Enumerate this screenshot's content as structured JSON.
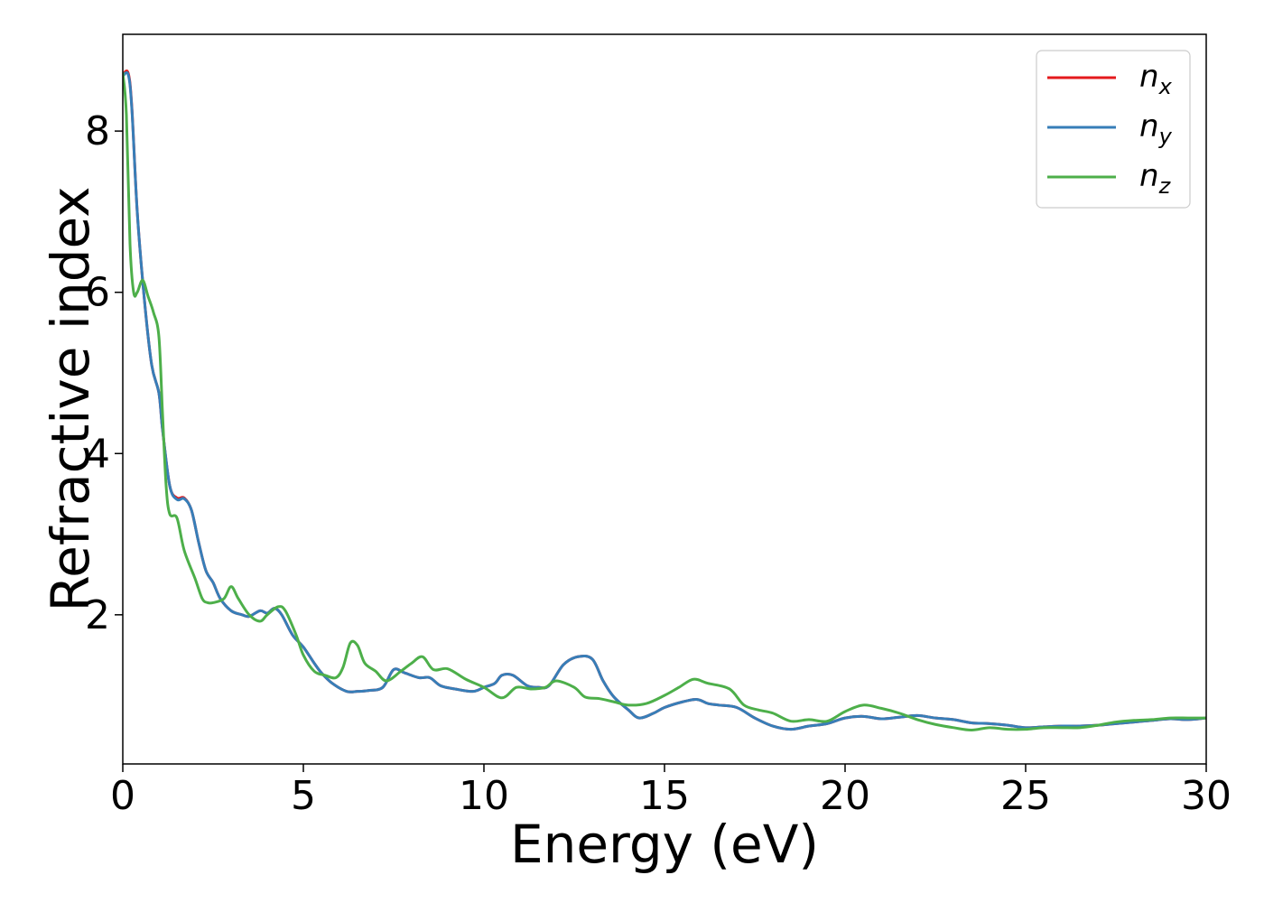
{
  "chart_data": {
    "type": "line",
    "xlabel": "Energy (eV)",
    "ylabel": "Refractive index",
    "xlim": [
      0,
      30
    ],
    "ylim": [
      0.15,
      9.2
    ],
    "xticks": [
      0,
      5,
      10,
      15,
      20,
      25,
      30
    ],
    "yticks": [
      2,
      4,
      6,
      8
    ],
    "grid": false,
    "legend_position": "top-right",
    "series": [
      {
        "name": "n_x",
        "label_base": "n",
        "label_sub": "x",
        "color": "#e41a1c",
        "x": [
          0,
          0.15,
          0.25,
          0.4,
          0.6,
          0.8,
          1.0,
          1.1,
          1.3,
          1.5,
          1.7,
          1.9,
          2.1,
          2.3,
          2.5,
          2.7,
          3.0,
          3.3,
          3.5,
          3.8,
          4.0,
          4.2,
          4.4,
          4.7,
          5.0,
          5.3,
          5.5,
          5.8,
          6.2,
          6.5,
          6.8,
          7.2,
          7.5,
          7.8,
          8.2,
          8.5,
          8.8,
          9.2,
          9.7,
          10.0,
          10.3,
          10.5,
          10.8,
          11.2,
          11.5,
          11.8,
          12.2,
          12.6,
          13.0,
          13.3,
          13.6,
          14.0,
          14.3,
          14.7,
          15.0,
          15.5,
          15.9,
          16.2,
          16.5,
          17.0,
          17.5,
          18.0,
          18.5,
          19.0,
          19.5,
          20.0,
          20.5,
          21.0,
          21.5,
          22.0,
          22.5,
          23.0,
          23.5,
          24.0,
          24.5,
          25.0,
          25.5,
          26.0,
          26.5,
          27.0,
          27.5,
          28.0,
          28.5,
          29.0,
          29.5,
          30.0
        ],
        "y": [
          8.7,
          8.72,
          8.3,
          7.0,
          5.9,
          5.1,
          4.75,
          4.3,
          3.6,
          3.45,
          3.45,
          3.3,
          2.9,
          2.55,
          2.4,
          2.2,
          2.05,
          2.0,
          1.98,
          2.05,
          2.02,
          2.08,
          2.0,
          1.75,
          1.6,
          1.4,
          1.28,
          1.15,
          1.05,
          1.05,
          1.06,
          1.1,
          1.32,
          1.28,
          1.22,
          1.22,
          1.12,
          1.08,
          1.05,
          1.1,
          1.15,
          1.25,
          1.25,
          1.12,
          1.1,
          1.12,
          1.38,
          1.48,
          1.45,
          1.18,
          0.98,
          0.82,
          0.72,
          0.78,
          0.85,
          0.92,
          0.95,
          0.9,
          0.88,
          0.85,
          0.72,
          0.62,
          0.58,
          0.62,
          0.65,
          0.72,
          0.74,
          0.71,
          0.73,
          0.75,
          0.72,
          0.7,
          0.66,
          0.65,
          0.63,
          0.6,
          0.61,
          0.62,
          0.62,
          0.63,
          0.65,
          0.67,
          0.69,
          0.71,
          0.7,
          0.72
        ]
      },
      {
        "name": "n_y",
        "label_base": "n",
        "label_sub": "y",
        "color": "#377eb8",
        "x": [
          0,
          0.15,
          0.25,
          0.4,
          0.6,
          0.8,
          1.0,
          1.1,
          1.3,
          1.5,
          1.7,
          1.9,
          2.1,
          2.3,
          2.5,
          2.7,
          3.0,
          3.3,
          3.5,
          3.8,
          4.0,
          4.2,
          4.4,
          4.7,
          5.0,
          5.3,
          5.5,
          5.8,
          6.2,
          6.5,
          6.8,
          7.2,
          7.5,
          7.8,
          8.2,
          8.5,
          8.8,
          9.2,
          9.7,
          10.0,
          10.3,
          10.5,
          10.8,
          11.2,
          11.5,
          11.8,
          12.2,
          12.6,
          13.0,
          13.3,
          13.6,
          14.0,
          14.3,
          14.7,
          15.0,
          15.5,
          15.9,
          16.2,
          16.5,
          17.0,
          17.5,
          18.0,
          18.5,
          19.0,
          19.5,
          20.0,
          20.5,
          21.0,
          21.5,
          22.0,
          22.5,
          23.0,
          23.5,
          24.0,
          24.5,
          25.0,
          25.5,
          26.0,
          26.5,
          27.0,
          27.5,
          28.0,
          28.5,
          29.0,
          29.5,
          30.0
        ],
        "y": [
          8.68,
          8.7,
          8.28,
          7.0,
          5.9,
          5.1,
          4.75,
          4.3,
          3.6,
          3.43,
          3.44,
          3.3,
          2.9,
          2.55,
          2.4,
          2.2,
          2.05,
          2.0,
          1.98,
          2.05,
          2.02,
          2.08,
          2.0,
          1.75,
          1.6,
          1.4,
          1.28,
          1.15,
          1.05,
          1.05,
          1.06,
          1.1,
          1.32,
          1.28,
          1.22,
          1.22,
          1.12,
          1.08,
          1.05,
          1.1,
          1.15,
          1.25,
          1.25,
          1.12,
          1.1,
          1.12,
          1.38,
          1.48,
          1.45,
          1.18,
          0.98,
          0.82,
          0.72,
          0.78,
          0.85,
          0.92,
          0.95,
          0.9,
          0.88,
          0.85,
          0.72,
          0.62,
          0.58,
          0.62,
          0.65,
          0.72,
          0.74,
          0.71,
          0.73,
          0.75,
          0.72,
          0.7,
          0.66,
          0.65,
          0.63,
          0.6,
          0.61,
          0.62,
          0.62,
          0.63,
          0.65,
          0.67,
          0.69,
          0.71,
          0.7,
          0.72
        ]
      },
      {
        "name": "n_z",
        "label_base": "n",
        "label_sub": "z",
        "color": "#4daf4a",
        "x": [
          0,
          0.1,
          0.2,
          0.3,
          0.4,
          0.55,
          0.7,
          0.85,
          1.0,
          1.1,
          1.2,
          1.3,
          1.5,
          1.7,
          2.0,
          2.2,
          2.35,
          2.5,
          2.8,
          3.0,
          3.2,
          3.5,
          3.8,
          4.0,
          4.3,
          4.5,
          4.8,
          5.0,
          5.3,
          5.6,
          5.9,
          6.1,
          6.3,
          6.5,
          6.7,
          7.0,
          7.3,
          7.7,
          8.0,
          8.3,
          8.6,
          9.0,
          9.5,
          10.0,
          10.5,
          10.9,
          11.3,
          11.7,
          12.0,
          12.5,
          12.8,
          13.2,
          13.6,
          14.0,
          14.5,
          15.0,
          15.4,
          15.8,
          16.2,
          16.8,
          17.2,
          17.6,
          18.0,
          18.5,
          19.0,
          19.5,
          20.0,
          20.5,
          21.0,
          21.5,
          22.0,
          22.5,
          23.0,
          23.5,
          24.0,
          24.5,
          25.0,
          25.5,
          26.0,
          26.5,
          27.0,
          27.5,
          28.0,
          28.5,
          29.0,
          29.5,
          30.0
        ],
        "y": [
          8.72,
          8.2,
          6.6,
          6.0,
          6.0,
          6.15,
          5.95,
          5.75,
          5.45,
          4.5,
          3.6,
          3.25,
          3.2,
          2.8,
          2.45,
          2.2,
          2.15,
          2.15,
          2.2,
          2.35,
          2.2,
          2.0,
          1.92,
          2.0,
          2.1,
          2.05,
          1.75,
          1.5,
          1.3,
          1.25,
          1.22,
          1.35,
          1.65,
          1.62,
          1.4,
          1.3,
          1.18,
          1.3,
          1.4,
          1.48,
          1.32,
          1.33,
          1.2,
          1.1,
          0.97,
          1.1,
          1.08,
          1.1,
          1.18,
          1.1,
          0.98,
          0.96,
          0.92,
          0.88,
          0.9,
          1.0,
          1.1,
          1.2,
          1.15,
          1.08,
          0.88,
          0.82,
          0.78,
          0.68,
          0.7,
          0.68,
          0.8,
          0.88,
          0.84,
          0.78,
          0.7,
          0.64,
          0.6,
          0.57,
          0.6,
          0.58,
          0.58,
          0.6,
          0.6,
          0.6,
          0.63,
          0.67,
          0.69,
          0.7,
          0.72,
          0.72,
          0.72
        ]
      }
    ]
  }
}
